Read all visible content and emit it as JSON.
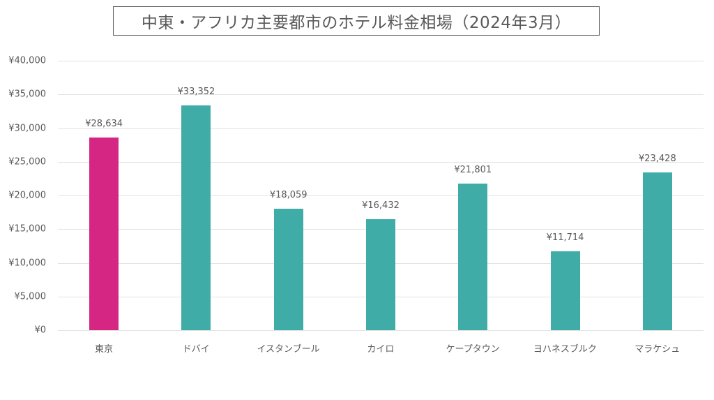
{
  "chart_data": {
    "type": "bar",
    "title": "中東・アフリカ主要都市のホテル料金相場（2024年3月）",
    "xlabel": "",
    "ylabel": "",
    "categories": [
      "東京",
      "ドバイ",
      "イスタンブール",
      "カイロ",
      "ケープタウン",
      "ヨハネスブルク",
      "マラケシュ"
    ],
    "values": [
      28634,
      33352,
      18059,
      16432,
      21801,
      11714,
      23428
    ],
    "data_labels": [
      "¥28,634",
      "¥33,352",
      "¥18,059",
      "¥16,432",
      "¥21,801",
      "¥11,714",
      "¥23,428"
    ],
    "bar_colors": [
      "#D62683",
      "#3FACA7",
      "#3FACA7",
      "#3FACA7",
      "#3FACA7",
      "#3FACA7",
      "#3FACA7"
    ],
    "ylim": [
      0,
      40000
    ],
    "yticks": [
      0,
      5000,
      10000,
      15000,
      20000,
      25000,
      30000,
      35000,
      40000
    ],
    "ytick_labels": [
      "¥0",
      "¥5,000",
      "¥10,000",
      "¥15,000",
      "¥20,000",
      "¥25,000",
      "¥30,000",
      "¥35,000",
      "¥40,000"
    ],
    "grid": true,
    "legend": "none"
  },
  "colors": {
    "highlight": "#D62683",
    "primary": "#3FACA7",
    "gridline": "#E3E3E3",
    "text": "#595959"
  }
}
